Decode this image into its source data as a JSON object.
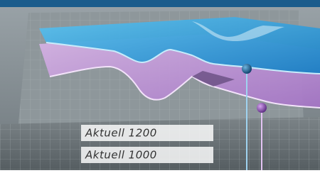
{
  "labels": [
    "Aktuell 1200",
    "Aktuell 1000"
  ]
}
